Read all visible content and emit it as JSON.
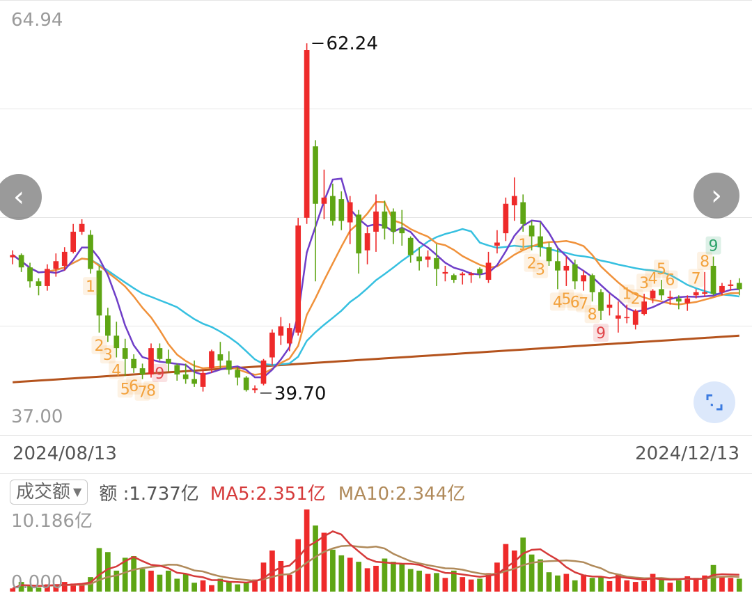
{
  "chart_data": {
    "type": "candlestick",
    "price_axis": {
      "max_label": "64.94",
      "min_label": "37.00",
      "ylim": [
        37.0,
        64.94
      ]
    },
    "date_range": {
      "start": "2024/08/13",
      "end": "2024/12/13"
    },
    "annotations": {
      "high": "62.24",
      "low": "39.70"
    },
    "colors": {
      "up": "#ee2a2a",
      "down": "#5ea514",
      "ma5": "#6f3ec8",
      "ma10": "#f0913a",
      "ma20": "#36c0e0",
      "ma_long": "#b4531d",
      "td_orange": "#f3a23d",
      "td_red": "#e0454a",
      "td_green": "#2ea36b"
    },
    "candles": [
      [
        48.45,
        48.9,
        48.0,
        48.6
      ],
      [
        48.6,
        48.7,
        47.5,
        47.8
      ],
      [
        47.8,
        48.1,
        46.5,
        46.9
      ],
      [
        46.9,
        47.1,
        46.0,
        46.6
      ],
      [
        46.6,
        48.0,
        46.3,
        47.7
      ],
      [
        47.7,
        48.7,
        47.2,
        48.2
      ],
      [
        47.9,
        49.1,
        47.6,
        48.8
      ],
      [
        48.8,
        50.6,
        48.7,
        50.1
      ],
      [
        50.1,
        50.9,
        49.9,
        50.6
      ],
      [
        49.9,
        50.2,
        47.4,
        47.7
      ],
      [
        47.6,
        47.9,
        43.6,
        44.7
      ],
      [
        44.7,
        45.2,
        43.0,
        43.4
      ],
      [
        43.4,
        44.3,
        42.0,
        42.6
      ],
      [
        42.6,
        43.2,
        40.8,
        41.9
      ],
      [
        41.9,
        42.2,
        41.0,
        41.3
      ],
      [
        41.3,
        41.6,
        40.6,
        40.9
      ],
      [
        40.9,
        42.9,
        40.7,
        42.6
      ],
      [
        42.6,
        42.9,
        41.8,
        41.9
      ],
      [
        41.9,
        42.5,
        41.1,
        41.6
      ],
      [
        41.5,
        41.6,
        40.5,
        40.9
      ],
      [
        40.9,
        41.6,
        40.3,
        40.6
      ],
      [
        40.6,
        41.8,
        40.1,
        40.3
      ],
      [
        40.1,
        41.2,
        39.8,
        41.0
      ],
      [
        41.3,
        42.5,
        41.0,
        42.4
      ],
      [
        42.2,
        43.0,
        41.3,
        41.8
      ],
      [
        41.8,
        42.4,
        40.9,
        41.2
      ],
      [
        41.2,
        41.4,
        40.2,
        40.7
      ],
      [
        40.7,
        40.8,
        39.8,
        39.9
      ],
      [
        39.9,
        40.2,
        39.7,
        40.0
      ],
      [
        40.3,
        41.9,
        40.2,
        41.8
      ],
      [
        42.0,
        43.8,
        41.5,
        43.6
      ],
      [
        43.4,
        44.6,
        42.8,
        44.0
      ],
      [
        42.9,
        44.2,
        42.4,
        43.9
      ],
      [
        43.6,
        51.0,
        43.4,
        50.5
      ],
      [
        51.0,
        62.24,
        50.6,
        61.8
      ],
      [
        55.6,
        56.0,
        46.9,
        51.9
      ],
      [
        51.9,
        54.1,
        50.9,
        52.3
      ],
      [
        52.4,
        53.2,
        50.5,
        50.8
      ],
      [
        52.2,
        52.7,
        50.2,
        50.8
      ],
      [
        50.7,
        52.4,
        49.3,
        52.0
      ],
      [
        51.2,
        51.5,
        47.4,
        48.7
      ],
      [
        48.9,
        50.4,
        48.0,
        50.0
      ],
      [
        50.1,
        52.5,
        48.8,
        51.4
      ],
      [
        51.4,
        52.1,
        49.6,
        50.3
      ],
      [
        51.4,
        51.6,
        49.3,
        50.1
      ],
      [
        50.3,
        51.5,
        49.2,
        50.0
      ],
      [
        49.7,
        49.8,
        48.1,
        48.6
      ],
      [
        48.5,
        49.1,
        47.6,
        48.2
      ],
      [
        48.3,
        48.9,
        47.8,
        48.5
      ],
      [
        48.4,
        49.3,
        46.6,
        47.7
      ],
      [
        47.4,
        47.9,
        46.9,
        47.5
      ],
      [
        47.3,
        47.4,
        46.8,
        47.0
      ],
      [
        47.3,
        47.5,
        46.7,
        47.4
      ],
      [
        47.3,
        47.5,
        46.8,
        47.4
      ],
      [
        47.7,
        47.8,
        47.1,
        47.4
      ],
      [
        47.0,
        48.8,
        46.8,
        48.1
      ],
      [
        49.2,
        50.2,
        48.7,
        49.4
      ],
      [
        50.0,
        52.3,
        49.5,
        51.9
      ],
      [
        51.8,
        53.6,
        50.8,
        52.4
      ],
      [
        52.0,
        52.5,
        50.1,
        50.6
      ],
      [
        50.5,
        50.8,
        48.9,
        49.8
      ],
      [
        49.8,
        50.7,
        48.5,
        49.1
      ],
      [
        49.1,
        49.4,
        47.9,
        48.2
      ],
      [
        48.2,
        49.0,
        46.4,
        47.6
      ],
      [
        47.6,
        48.5,
        46.6,
        47.9
      ],
      [
        48.0,
        48.3,
        46.4,
        46.9
      ],
      [
        46.9,
        47.6,
        46.3,
        47.3
      ],
      [
        47.3,
        47.4,
        45.6,
        46.2
      ],
      [
        46.2,
        46.4,
        44.4,
        45.0
      ],
      [
        45.2,
        46.1,
        44.7,
        45.4
      ],
      [
        44.5,
        45.6,
        43.6,
        44.7
      ],
      [
        44.6,
        45.4,
        44.2,
        44.6
      ],
      [
        44.1,
        45.1,
        43.8,
        45.0
      ],
      [
        44.8,
        46.1,
        44.7,
        45.6
      ],
      [
        45.8,
        46.4,
        45.5,
        46.3
      ],
      [
        46.4,
        47.0,
        45.7,
        46.0
      ],
      [
        45.9,
        46.3,
        45.4,
        45.9
      ],
      [
        45.8,
        46.0,
        45.1,
        45.6
      ],
      [
        45.5,
        46.0,
        45.0,
        45.8
      ],
      [
        46.0,
        46.4,
        45.8,
        46.2
      ],
      [
        46.1,
        47.5,
        45.9,
        46.2
      ],
      [
        47.9,
        48.5,
        46.0,
        46.1
      ],
      [
        46.2,
        46.8,
        46.0,
        46.6
      ],
      [
        46.6,
        47.0,
        46.3,
        46.7
      ],
      [
        46.8,
        47.1,
        46.0,
        46.4
      ]
    ],
    "td_labels": [
      {
        "i": 9,
        "text": "1",
        "pos": "below",
        "color": "orange"
      },
      {
        "i": 10,
        "text": "2",
        "pos": "below",
        "color": "orange"
      },
      {
        "i": 11,
        "text": "3",
        "pos": "below",
        "color": "orange"
      },
      {
        "i": 12,
        "text": "4",
        "pos": "below",
        "color": "orange"
      },
      {
        "i": 13,
        "text": "5",
        "pos": "below",
        "color": "orange"
      },
      {
        "i": 14,
        "text": "6",
        "pos": "below",
        "color": "orange"
      },
      {
        "i": 15,
        "text": "7",
        "pos": "below",
        "color": "orange"
      },
      {
        "i": 16,
        "text": "8",
        "pos": "below",
        "color": "orange"
      },
      {
        "i": 17,
        "text": "9",
        "pos": "below",
        "color": "red"
      },
      {
        "i": 59,
        "text": "1",
        "pos": "below",
        "color": "orange"
      },
      {
        "i": 60,
        "text": "2",
        "pos": "below",
        "color": "orange"
      },
      {
        "i": 61,
        "text": "3",
        "pos": "below",
        "color": "orange"
      },
      {
        "i": 63,
        "text": "4",
        "pos": "below",
        "color": "orange"
      },
      {
        "i": 64,
        "text": "5",
        "pos": "below",
        "color": "orange"
      },
      {
        "i": 65,
        "text": "6",
        "pos": "below",
        "color": "orange"
      },
      {
        "i": 66,
        "text": "7",
        "pos": "below",
        "color": "orange"
      },
      {
        "i": 67,
        "text": "8",
        "pos": "below",
        "color": "orange"
      },
      {
        "i": 68,
        "text": "9",
        "pos": "below",
        "color": "red"
      },
      {
        "i": 71,
        "text": "1",
        "pos": "above",
        "color": "orange"
      },
      {
        "i": 72,
        "text": "2",
        "pos": "above",
        "color": "orange"
      },
      {
        "i": 73,
        "text": "3",
        "pos": "above",
        "color": "orange"
      },
      {
        "i": 74,
        "text": "4",
        "pos": "above",
        "color": "orange"
      },
      {
        "i": 75,
        "text": "5",
        "pos": "above",
        "color": "orange"
      },
      {
        "i": 76,
        "text": "6",
        "pos": "above",
        "color": "orange"
      },
      {
        "i": 79,
        "text": "7",
        "pos": "above",
        "color": "orange"
      },
      {
        "i": 80,
        "text": "8",
        "pos": "above",
        "color": "orange"
      },
      {
        "i": 81,
        "text": "9",
        "pos": "above",
        "color": "green"
      }
    ],
    "volume": {
      "selector_label": "成交额",
      "amount_label": "额 :1.737亿",
      "ma5_label": "MA5:2.351亿",
      "ma10_label": "MA10:2.344亿",
      "max_label": "10.186亿",
      "min_label": "0.000",
      "max_value": 10.186,
      "values": [
        0.4,
        1.2,
        0.7,
        0.5,
        0.9,
        0.8,
        1.2,
        1.0,
        0.9,
        1.8,
        5.4,
        4.9,
        2.6,
        4.2,
        4.4,
        2.8,
        2.6,
        2.1,
        2.6,
        1.6,
        2.2,
        1.1,
        1.4,
        0.8,
        1.6,
        1.2,
        0.9,
        1.1,
        1.5,
        3.6,
        5.1,
        3.8,
        2.1,
        6.5,
        10.19,
        8.2,
        7.3,
        5.2,
        4.5,
        4.2,
        3.7,
        2.9,
        3.2,
        4.1,
        3.7,
        3.4,
        2.8,
        2.6,
        2.2,
        2.3,
        1.7,
        2.6,
        1.8,
        1.5,
        1.6,
        2.3,
        3.6,
        5.9,
        5.1,
        6.7,
        4.6,
        4.0,
        2.4,
        2.0,
        2.2,
        1.4,
        2.1,
        1.7,
        1.9,
        1.3,
        2.2,
        1.4,
        1.2,
        1.3,
        2.2,
        1.6,
        1.1,
        1.4,
        1.9,
        1.7,
        2.0,
        3.3,
        1.9,
        1.7,
        1.6
      ]
    }
  }
}
